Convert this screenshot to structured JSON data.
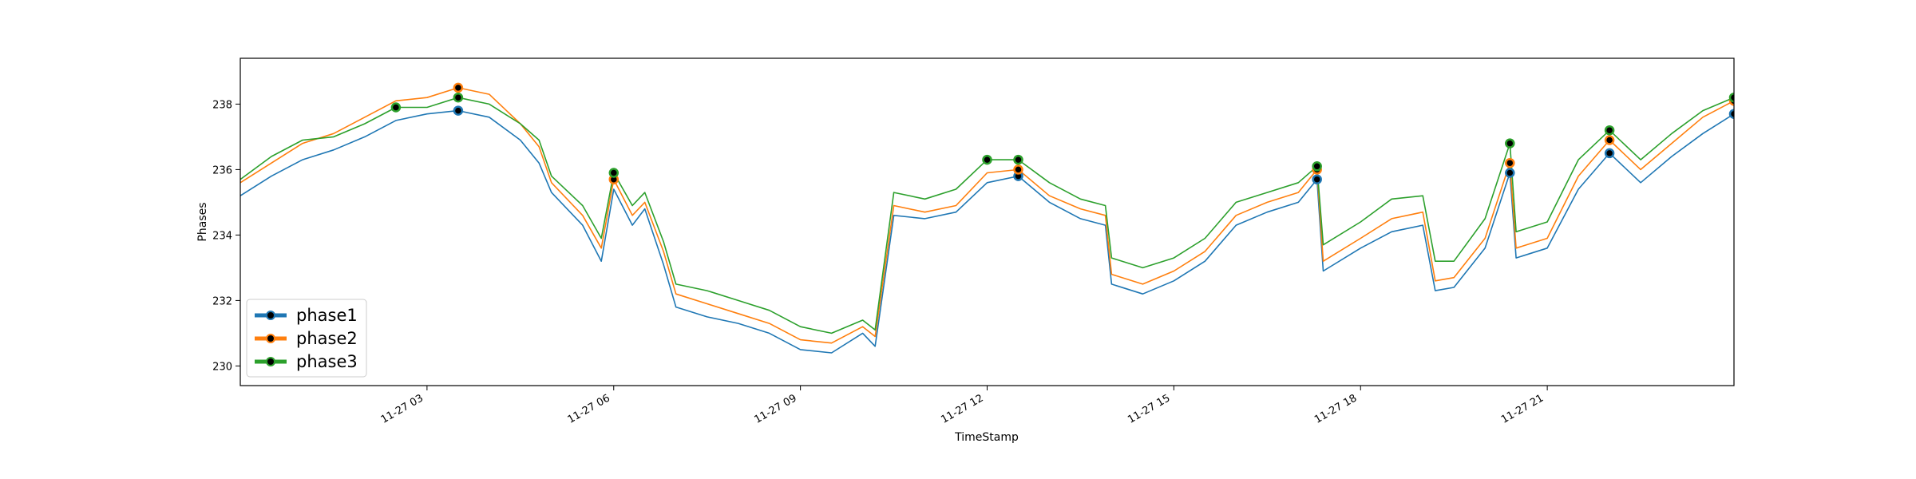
{
  "chart_data": {
    "type": "line",
    "xlabel": "TimeStamp",
    "ylabel": "Phases",
    "x_ticks": [
      "11-27 03",
      "11-27 06",
      "11-27 09",
      "11-27 12",
      "11-27 15",
      "11-27 18",
      "11-27 21"
    ],
    "x_tick_hours": [
      3,
      6,
      9,
      12,
      15,
      18,
      21
    ],
    "x_start": "11-27 00:00",
    "xlim_hours": [
      0,
      24
    ],
    "ylim": [
      229.4,
      239.4
    ],
    "y_ticks": [
      230,
      232,
      234,
      236,
      238
    ],
    "legend_position": "lower-left",
    "series": [
      {
        "name": "phase1",
        "color": "#1f77b4",
        "x": [
          0.0,
          0.5,
          1.0,
          1.5,
          2.0,
          2.5,
          3.0,
          3.5,
          4.0,
          4.5,
          4.8,
          5.0,
          5.5,
          5.8,
          6.0,
          6.3,
          6.5,
          6.8,
          7.0,
          7.5,
          8.0,
          8.5,
          9.0,
          9.5,
          10.0,
          10.2,
          10.5,
          11.0,
          11.5,
          12.0,
          12.5,
          13.0,
          13.5,
          13.9,
          14.0,
          14.5,
          15.0,
          15.5,
          16.0,
          16.5,
          17.0,
          17.3,
          17.4,
          18.0,
          18.5,
          19.0,
          19.2,
          19.5,
          20.0,
          20.4,
          20.5,
          21.0,
          21.5,
          22.0,
          22.5,
          23.0,
          23.5,
          24.0
        ],
        "values": [
          235.2,
          235.8,
          236.3,
          236.6,
          237.0,
          237.5,
          237.7,
          237.8,
          237.6,
          236.9,
          236.2,
          235.3,
          234.3,
          233.2,
          235.4,
          234.3,
          234.8,
          233.1,
          231.8,
          231.5,
          231.3,
          231.0,
          230.5,
          230.4,
          231.0,
          230.6,
          234.6,
          234.5,
          234.7,
          235.6,
          235.8,
          235.0,
          234.5,
          234.3,
          232.5,
          232.2,
          232.6,
          233.2,
          234.3,
          234.7,
          235.0,
          235.7,
          232.9,
          233.6,
          234.1,
          234.3,
          232.3,
          232.4,
          233.6,
          235.9,
          233.3,
          233.6,
          235.4,
          236.5,
          235.6,
          236.4,
          237.1,
          237.7
        ]
      },
      {
        "name": "phase2",
        "color": "#ff7f0e",
        "x": [
          0.0,
          0.5,
          1.0,
          1.5,
          2.0,
          2.5,
          3.0,
          3.5,
          4.0,
          4.5,
          4.8,
          5.0,
          5.5,
          5.8,
          6.0,
          6.3,
          6.5,
          6.8,
          7.0,
          7.5,
          8.0,
          8.5,
          9.0,
          9.5,
          10.0,
          10.2,
          10.5,
          11.0,
          11.5,
          12.0,
          12.5,
          13.0,
          13.5,
          13.9,
          14.0,
          14.5,
          15.0,
          15.5,
          16.0,
          16.5,
          17.0,
          17.3,
          17.4,
          18.0,
          18.5,
          19.0,
          19.2,
          19.5,
          20.0,
          20.4,
          20.5,
          21.0,
          21.5,
          22.0,
          22.5,
          23.0,
          23.5,
          24.0
        ],
        "values": [
          235.6,
          236.2,
          236.8,
          237.1,
          237.6,
          238.1,
          238.2,
          238.5,
          238.3,
          237.4,
          236.7,
          235.6,
          234.6,
          233.6,
          235.7,
          234.6,
          235.0,
          233.5,
          232.2,
          231.9,
          231.6,
          231.3,
          230.8,
          230.7,
          231.2,
          230.9,
          234.9,
          234.7,
          234.9,
          235.9,
          236.0,
          235.2,
          234.8,
          234.6,
          232.8,
          232.5,
          232.9,
          233.5,
          234.6,
          235.0,
          235.3,
          236.0,
          233.2,
          233.9,
          234.5,
          234.7,
          232.6,
          232.7,
          233.9,
          236.2,
          233.6,
          233.9,
          235.8,
          236.9,
          236.0,
          236.8,
          237.6,
          238.1
        ]
      },
      {
        "name": "phase3",
        "color": "#2ca02c",
        "x": [
          0.0,
          0.5,
          1.0,
          1.5,
          2.0,
          2.5,
          3.0,
          3.5,
          4.0,
          4.5,
          4.8,
          5.0,
          5.5,
          5.8,
          6.0,
          6.3,
          6.5,
          6.8,
          7.0,
          7.5,
          8.0,
          8.5,
          9.0,
          9.5,
          10.0,
          10.2,
          10.5,
          11.0,
          11.5,
          12.0,
          12.5,
          13.0,
          13.5,
          13.9,
          14.0,
          14.5,
          15.0,
          15.5,
          16.0,
          16.5,
          17.0,
          17.3,
          17.4,
          18.0,
          18.5,
          19.0,
          19.2,
          19.5,
          20.0,
          20.4,
          20.5,
          21.0,
          21.5,
          22.0,
          22.5,
          23.0,
          23.5,
          24.0
        ],
        "values": [
          235.7,
          236.4,
          236.9,
          237.0,
          237.4,
          237.9,
          237.9,
          238.2,
          238.0,
          237.4,
          236.9,
          235.8,
          234.9,
          233.9,
          235.9,
          234.9,
          235.3,
          233.8,
          232.5,
          232.3,
          232.0,
          231.7,
          231.2,
          231.0,
          231.4,
          231.1,
          235.3,
          235.1,
          235.4,
          236.3,
          236.3,
          235.6,
          235.1,
          234.9,
          233.3,
          233.0,
          233.3,
          233.9,
          235.0,
          235.3,
          235.6,
          236.1,
          233.7,
          234.4,
          235.1,
          235.2,
          233.2,
          233.2,
          234.5,
          236.8,
          234.1,
          234.4,
          236.3,
          237.2,
          236.3,
          237.1,
          237.8,
          238.2
        ]
      }
    ]
  }
}
